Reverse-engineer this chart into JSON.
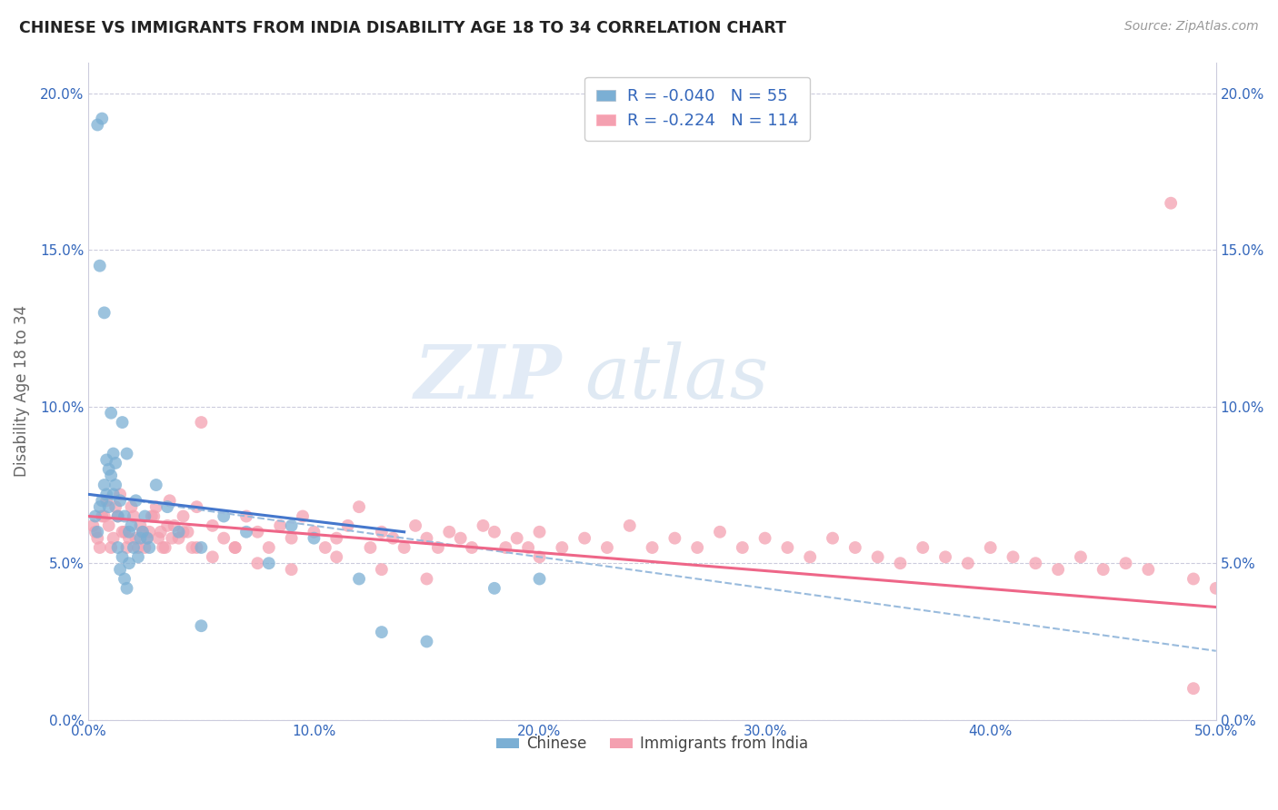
{
  "title": "CHINESE VS IMMIGRANTS FROM INDIA DISABILITY AGE 18 TO 34 CORRELATION CHART",
  "source": "Source: ZipAtlas.com",
  "ylabel": "Disability Age 18 to 34",
  "xlim": [
    0.0,
    0.5
  ],
  "ylim": [
    0.0,
    0.21
  ],
  "xticks": [
    0.0,
    0.1,
    0.2,
    0.3,
    0.4,
    0.5
  ],
  "yticks": [
    0.0,
    0.05,
    0.1,
    0.15,
    0.2
  ],
  "xtick_labels": [
    "0.0%",
    "10.0%",
    "20.0%",
    "30.0%",
    "40.0%",
    "50.0%"
  ],
  "ytick_labels": [
    "0.0%",
    "5.0%",
    "10.0%",
    "15.0%",
    "20.0%"
  ],
  "chinese_R": -0.04,
  "chinese_N": 55,
  "india_R": -0.224,
  "india_N": 114,
  "chinese_color": "#7BAFD4",
  "india_color": "#F4A0B0",
  "trendline_chinese_color": "#4477CC",
  "trendline_india_color": "#EE6688",
  "dashed_line_color": "#99BBDD",
  "background_color": "#FFFFFF",
  "legend_label_chinese": "Chinese",
  "legend_label_india": "Immigrants from India",
  "chinese_x": [
    0.004,
    0.006,
    0.008,
    0.01,
    0.012,
    0.014,
    0.016,
    0.018,
    0.02,
    0.022,
    0.024,
    0.026,
    0.005,
    0.007,
    0.009,
    0.011,
    0.013,
    0.015,
    0.017,
    0.019,
    0.021,
    0.023,
    0.025,
    0.027,
    0.03,
    0.035,
    0.04,
    0.05,
    0.06,
    0.07,
    0.08,
    0.09,
    0.1,
    0.12,
    0.15,
    0.18,
    0.003,
    0.004,
    0.005,
    0.006,
    0.007,
    0.008,
    0.009,
    0.01,
    0.011,
    0.012,
    0.013,
    0.014,
    0.015,
    0.016,
    0.017,
    0.018,
    0.05,
    0.13,
    0.2
  ],
  "chinese_y": [
    0.19,
    0.192,
    0.083,
    0.098,
    0.075,
    0.07,
    0.065,
    0.06,
    0.055,
    0.052,
    0.06,
    0.058,
    0.145,
    0.13,
    0.068,
    0.072,
    0.065,
    0.095,
    0.085,
    0.062,
    0.07,
    0.058,
    0.065,
    0.055,
    0.075,
    0.068,
    0.06,
    0.055,
    0.065,
    0.06,
    0.05,
    0.062,
    0.058,
    0.045,
    0.025,
    0.042,
    0.065,
    0.06,
    0.068,
    0.07,
    0.075,
    0.072,
    0.08,
    0.078,
    0.085,
    0.082,
    0.055,
    0.048,
    0.052,
    0.045,
    0.042,
    0.05,
    0.03,
    0.028,
    0.045
  ],
  "india_x": [
    0.002,
    0.004,
    0.006,
    0.008,
    0.01,
    0.012,
    0.014,
    0.016,
    0.018,
    0.02,
    0.022,
    0.024,
    0.026,
    0.028,
    0.03,
    0.032,
    0.034,
    0.036,
    0.038,
    0.04,
    0.042,
    0.044,
    0.046,
    0.048,
    0.05,
    0.055,
    0.06,
    0.065,
    0.07,
    0.075,
    0.08,
    0.085,
    0.09,
    0.095,
    0.1,
    0.105,
    0.11,
    0.115,
    0.12,
    0.125,
    0.13,
    0.135,
    0.14,
    0.145,
    0.15,
    0.155,
    0.16,
    0.165,
    0.17,
    0.175,
    0.18,
    0.185,
    0.19,
    0.195,
    0.2,
    0.21,
    0.22,
    0.23,
    0.24,
    0.25,
    0.26,
    0.27,
    0.28,
    0.29,
    0.3,
    0.31,
    0.32,
    0.33,
    0.34,
    0.35,
    0.36,
    0.37,
    0.38,
    0.39,
    0.4,
    0.41,
    0.42,
    0.43,
    0.44,
    0.45,
    0.46,
    0.47,
    0.48,
    0.49,
    0.5,
    0.003,
    0.005,
    0.007,
    0.009,
    0.011,
    0.013,
    0.015,
    0.017,
    0.019,
    0.021,
    0.023,
    0.025,
    0.027,
    0.029,
    0.031,
    0.033,
    0.035,
    0.037,
    0.042,
    0.048,
    0.055,
    0.065,
    0.075,
    0.09,
    0.11,
    0.13,
    0.15,
    0.2,
    0.49
  ],
  "india_y": [
    0.062,
    0.058,
    0.065,
    0.07,
    0.055,
    0.068,
    0.072,
    0.06,
    0.058,
    0.065,
    0.055,
    0.06,
    0.058,
    0.065,
    0.068,
    0.06,
    0.055,
    0.07,
    0.062,
    0.058,
    0.065,
    0.06,
    0.055,
    0.068,
    0.095,
    0.062,
    0.058,
    0.055,
    0.065,
    0.06,
    0.055,
    0.062,
    0.058,
    0.065,
    0.06,
    0.055,
    0.058,
    0.062,
    0.068,
    0.055,
    0.06,
    0.058,
    0.055,
    0.062,
    0.058,
    0.055,
    0.06,
    0.058,
    0.055,
    0.062,
    0.06,
    0.055,
    0.058,
    0.055,
    0.06,
    0.055,
    0.058,
    0.055,
    0.062,
    0.055,
    0.058,
    0.055,
    0.06,
    0.055,
    0.058,
    0.055,
    0.052,
    0.058,
    0.055,
    0.052,
    0.05,
    0.055,
    0.052,
    0.05,
    0.055,
    0.052,
    0.05,
    0.048,
    0.052,
    0.048,
    0.05,
    0.048,
    0.165,
    0.045,
    0.042,
    0.06,
    0.055,
    0.065,
    0.062,
    0.058,
    0.065,
    0.06,
    0.055,
    0.068,
    0.058,
    0.062,
    0.055,
    0.06,
    0.065,
    0.058,
    0.055,
    0.062,
    0.058,
    0.06,
    0.055,
    0.052,
    0.055,
    0.05,
    0.048,
    0.052,
    0.048,
    0.045,
    0.052,
    0.01
  ]
}
